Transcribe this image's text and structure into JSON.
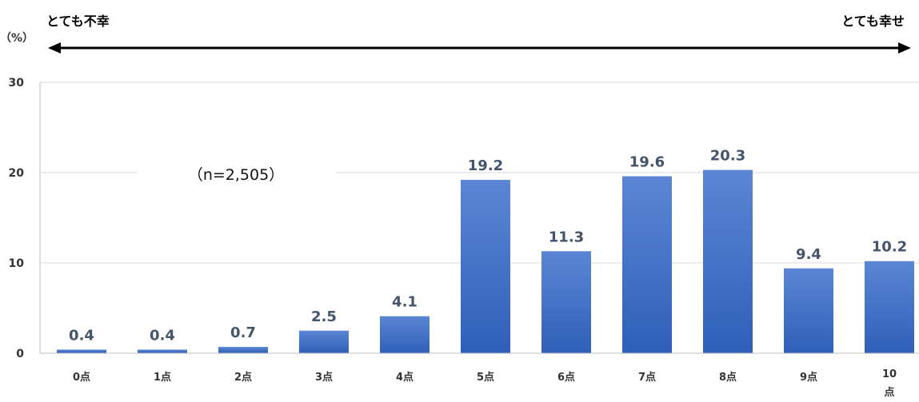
{
  "chart_data": {
    "type": "bar",
    "categories": [
      "0点",
      "1点",
      "2点",
      "3点",
      "4点",
      "5点",
      "6点",
      "7点",
      "8点",
      "9点",
      "10点"
    ],
    "values": [
      0.4,
      0.4,
      0.7,
      2.5,
      4.1,
      19.2,
      11.3,
      19.6,
      20.3,
      9.4,
      10.2
    ],
    "ylabel": "（%）",
    "ylim": [
      0,
      30
    ],
    "yticks": [
      0,
      10,
      20,
      30
    ],
    "grid": true,
    "legend": "none",
    "bar_color": "#4472c4",
    "scale_left_label": "とても不幸",
    "scale_right_label": "とても幸せ",
    "sample_note": "（n=2,505）"
  }
}
